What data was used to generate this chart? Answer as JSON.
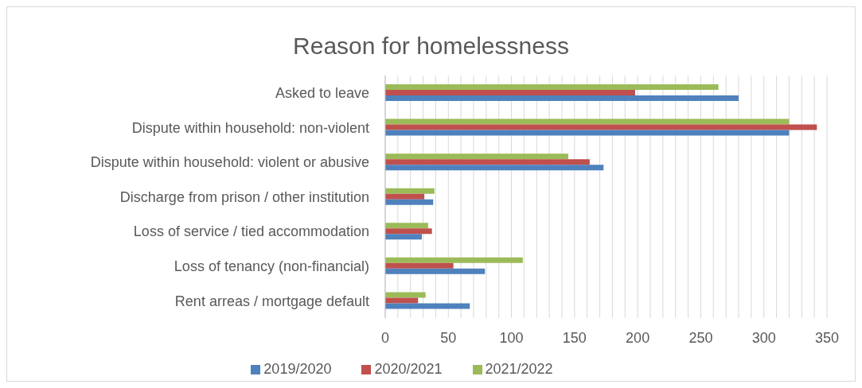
{
  "chart_data": {
    "type": "bar",
    "orientation": "horizontal",
    "title": "Reason for homelessness",
    "categories": [
      "Asked to leave",
      "Dispute within household: non-violent",
      "Dispute within household: violent or abusive",
      "Discharge from prison / other institution",
      "Loss of service / tied accommodation",
      "Loss of tenancy (non-financial)",
      "Rent arreas / mortgage default"
    ],
    "series": [
      {
        "name": "2021/2022",
        "color": "#9bbb59",
        "values": [
          264,
          320,
          145,
          39,
          34,
          109,
          32
        ]
      },
      {
        "name": "2020/2021",
        "color": "#c0504d",
        "values": [
          198,
          342,
          162,
          31,
          37,
          54,
          26
        ]
      },
      {
        "name": "2019/2020",
        "color": "#4f81bd",
        "values": [
          280,
          320,
          173,
          38,
          29,
          79,
          67
        ]
      }
    ],
    "xlim": [
      0,
      350
    ],
    "xticks": [
      0,
      {
        "value": 10,
        "label": null
      },
      {
        "value": 20,
        "label": null
      },
      {
        "value": 30,
        "label": null
      },
      {
        "value": 40,
        "label": null
      },
      50,
      {
        "value": 60,
        "label": null
      },
      {
        "value": 70,
        "label": null
      },
      {
        "value": 80,
        "label": null
      },
      {
        "value": 90,
        "label": null
      },
      100,
      {
        "value": 110,
        "label": null
      },
      {
        "value": 120,
        "label": null
      },
      {
        "value": 130,
        "label": null
      },
      {
        "value": 140,
        "label": null
      },
      150,
      {
        "value": 160,
        "label": null
      },
      {
        "value": 170,
        "label": null
      },
      {
        "value": 180,
        "label": null
      },
      {
        "value": 190,
        "label": null
      },
      200,
      {
        "value": 210,
        "label": null
      },
      {
        "value": 220,
        "label": null
      },
      {
        "value": 230,
        "label": null
      },
      {
        "value": 240,
        "label": null
      },
      250,
      {
        "value": 260,
        "label": null
      },
      {
        "value": 270,
        "label": null
      },
      {
        "value": 280,
        "label": null
      },
      {
        "value": 290,
        "label": null
      },
      300,
      {
        "value": 310,
        "label": null
      },
      {
        "value": 320,
        "label": null
      },
      {
        "value": 330,
        "label": null
      },
      {
        "value": 340,
        "label": null
      },
      350
    ],
    "grid": "x",
    "legend": "bottom"
  }
}
